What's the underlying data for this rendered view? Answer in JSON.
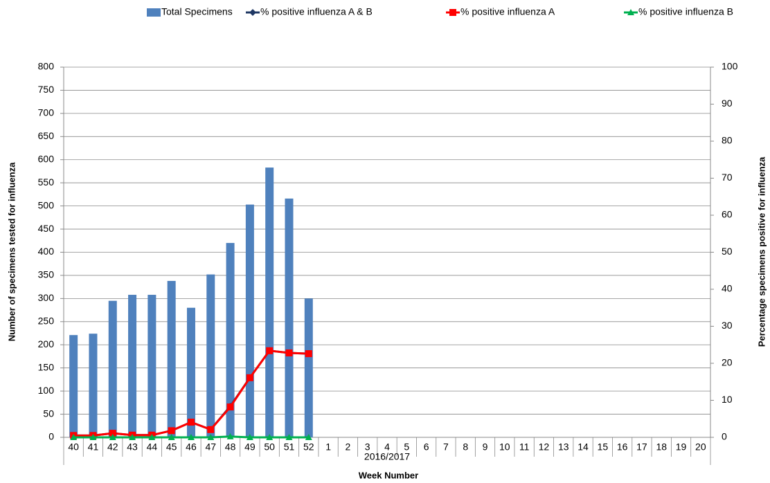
{
  "chart_data": {
    "type": "bar-line",
    "x_title": "Week Number",
    "y_title": "Number of specimens tested for influenza",
    "y2_title": "Percentage specimens positive for influenza",
    "category_group": "2016/2017",
    "categories": [
      "40",
      "41",
      "42",
      "43",
      "44",
      "45",
      "46",
      "47",
      "48",
      "49",
      "50",
      "51",
      "52",
      "1",
      "2",
      "3",
      "4",
      "5",
      "6",
      "7",
      "8",
      "9",
      "10",
      "11",
      "12",
      "13",
      "14",
      "15",
      "16",
      "17",
      "18",
      "19",
      "20"
    ],
    "series": [
      {
        "name": "Total Specimens",
        "type": "bar",
        "color": "#4f81bd",
        "values": [
          221,
          224,
          295,
          308,
          308,
          338,
          280,
          352,
          420,
          503,
          583,
          516,
          300,
          null,
          null,
          null,
          null,
          null,
          null,
          null,
          null,
          null,
          null,
          null,
          null,
          null,
          null,
          null,
          null,
          null,
          null,
          null,
          null
        ]
      },
      {
        "name": "% positive influenza A & B",
        "type": "line",
        "marker": "diamond",
        "axis": "y2",
        "color": "#1f3864",
        "values": [
          0.5,
          0.5,
          1.1,
          0.6,
          0.6,
          1.8,
          4.1,
          2.1,
          8.4,
          16.1,
          23.4,
          22.8,
          22.6,
          null,
          null,
          null,
          null,
          null,
          null,
          null,
          null,
          null,
          null,
          null,
          null,
          null,
          null,
          null,
          null,
          null,
          null,
          null,
          null
        ]
      },
      {
        "name": "% positive influenza A",
        "type": "line",
        "marker": "square",
        "axis": "y2",
        "color": "#ff0000",
        "values": [
          0.5,
          0.5,
          1.1,
          0.6,
          0.6,
          1.8,
          4.1,
          2.1,
          8.2,
          16.1,
          23.4,
          22.8,
          22.6,
          null,
          null,
          null,
          null,
          null,
          null,
          null,
          null,
          null,
          null,
          null,
          null,
          null,
          null,
          null,
          null,
          null,
          null,
          null,
          null
        ]
      },
      {
        "name": "% positive influenza B",
        "type": "line",
        "marker": "triangle",
        "axis": "y2",
        "color": "#00b050",
        "values": [
          0,
          0,
          0,
          0,
          0,
          0,
          0,
          0,
          0.2,
          0,
          0,
          0,
          0,
          null,
          null,
          null,
          null,
          null,
          null,
          null,
          null,
          null,
          null,
          null,
          null,
          null,
          null,
          null,
          null,
          null,
          null,
          null,
          null
        ]
      }
    ],
    "ylim": [
      0,
      800
    ],
    "yticks": [
      0,
      50,
      100,
      150,
      200,
      250,
      300,
      350,
      400,
      450,
      500,
      550,
      600,
      650,
      700,
      750,
      800
    ],
    "y2lim": [
      0,
      100
    ],
    "y2ticks": [
      0,
      10,
      20,
      30,
      40,
      50,
      60,
      70,
      80,
      90,
      100
    ],
    "grid": true,
    "legend": "top"
  }
}
